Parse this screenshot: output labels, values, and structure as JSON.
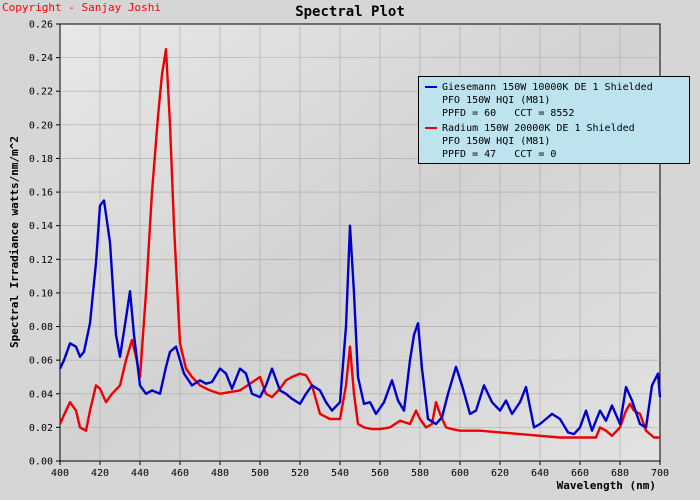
{
  "copyright": "Copyright - Sanjay Joshi",
  "chart_data": {
    "type": "line",
    "title": "Spectral Plot",
    "xlabel": "Wavelength (nm)",
    "ylabel": "Spectral Irradiance watts/nm/m^2",
    "xlim": [
      400,
      700
    ],
    "ylim": [
      0,
      0.26
    ],
    "xticks": [
      "400",
      "420",
      "440",
      "460",
      "480",
      "500",
      "520",
      "540",
      "560",
      "580",
      "600",
      "620",
      "640",
      "660",
      "680",
      "700"
    ],
    "yticks": [
      "0.00",
      "0.02",
      "0.04",
      "0.06",
      "0.08",
      "0.10",
      "0.12",
      "0.14",
      "0.16",
      "0.18",
      "0.20",
      "0.22",
      "0.24",
      "0.26"
    ],
    "legend_position": "top-right",
    "series": [
      {
        "name": "Giesemann 150W 10000K DE 1 Shielded",
        "ballast": "PFO 150W HQI (M81)",
        "ppfd_line": "PPFD = 60   CCT = 8552",
        "color": "#0000cc",
        "x": [
          400,
          402,
          405,
          408,
          410,
          412,
          415,
          418,
          420,
          422,
          425,
          428,
          430,
          433,
          435,
          437,
          440,
          443,
          446,
          450,
          453,
          455,
          458,
          462,
          466,
          470,
          473,
          476,
          480,
          483,
          486,
          490,
          493,
          496,
          500,
          503,
          506,
          510,
          513,
          516,
          520,
          523,
          526,
          530,
          533,
          536,
          540,
          543,
          545,
          547,
          549,
          552,
          555,
          558,
          562,
          566,
          569,
          572,
          575,
          577,
          579,
          581,
          584,
          588,
          591,
          594,
          598,
          601,
          605,
          608,
          612,
          616,
          620,
          623,
          626,
          630,
          633,
          637,
          640,
          643,
          646,
          650,
          654,
          657,
          660,
          663,
          666,
          670,
          673,
          676,
          680,
          683,
          686,
          690,
          693,
          696,
          699,
          700
        ],
        "y": [
          0.055,
          0.06,
          0.07,
          0.068,
          0.062,
          0.065,
          0.082,
          0.118,
          0.152,
          0.155,
          0.13,
          0.075,
          0.062,
          0.085,
          0.101,
          0.075,
          0.045,
          0.04,
          0.042,
          0.04,
          0.056,
          0.065,
          0.068,
          0.052,
          0.045,
          0.048,
          0.046,
          0.047,
          0.055,
          0.052,
          0.043,
          0.055,
          0.052,
          0.04,
          0.038,
          0.045,
          0.055,
          0.042,
          0.04,
          0.037,
          0.034,
          0.04,
          0.045,
          0.042,
          0.035,
          0.03,
          0.035,
          0.08,
          0.14,
          0.1,
          0.05,
          0.034,
          0.035,
          0.028,
          0.035,
          0.048,
          0.036,
          0.03,
          0.06,
          0.075,
          0.082,
          0.055,
          0.025,
          0.022,
          0.026,
          0.04,
          0.056,
          0.045,
          0.028,
          0.03,
          0.045,
          0.035,
          0.03,
          0.036,
          0.028,
          0.035,
          0.044,
          0.02,
          0.022,
          0.025,
          0.028,
          0.025,
          0.017,
          0.016,
          0.02,
          0.03,
          0.018,
          0.03,
          0.024,
          0.033,
          0.022,
          0.044,
          0.036,
          0.022,
          0.02,
          0.045,
          0.052,
          0.038
        ]
      },
      {
        "name": "Radium 150W 20000K DE 1 Shielded",
        "ballast": "PFO 150W HQI (M81)",
        "ppfd_line": "PPFD = 47   CCT = 0",
        "color": "#ee0000",
        "x": [
          400,
          403,
          405,
          408,
          410,
          413,
          415,
          418,
          420,
          423,
          426,
          430,
          433,
          436,
          438,
          440,
          443,
          446,
          449,
          451,
          453,
          455,
          457,
          460,
          463,
          466,
          470,
          475,
          480,
          485,
          490,
          495,
          500,
          503,
          506,
          510,
          513,
          516,
          520,
          523,
          526,
          530,
          535,
          540,
          543,
          545,
          547,
          549,
          552,
          556,
          560,
          565,
          570,
          575,
          578,
          580,
          583,
          586,
          588,
          590,
          593,
          596,
          600,
          610,
          620,
          630,
          640,
          650,
          660,
          665,
          668,
          670,
          673,
          676,
          680,
          683,
          685,
          687,
          690,
          693,
          697,
          700
        ],
        "y": [
          0.022,
          0.03,
          0.035,
          0.03,
          0.02,
          0.018,
          0.03,
          0.045,
          0.043,
          0.035,
          0.04,
          0.045,
          0.06,
          0.072,
          0.062,
          0.05,
          0.1,
          0.16,
          0.205,
          0.23,
          0.245,
          0.2,
          0.14,
          0.07,
          0.055,
          0.05,
          0.045,
          0.042,
          0.04,
          0.041,
          0.042,
          0.046,
          0.05,
          0.04,
          0.038,
          0.043,
          0.048,
          0.05,
          0.052,
          0.051,
          0.045,
          0.028,
          0.025,
          0.025,
          0.045,
          0.068,
          0.04,
          0.022,
          0.02,
          0.019,
          0.019,
          0.02,
          0.024,
          0.022,
          0.03,
          0.025,
          0.02,
          0.022,
          0.035,
          0.028,
          0.02,
          0.019,
          0.018,
          0.018,
          0.017,
          0.016,
          0.015,
          0.014,
          0.014,
          0.014,
          0.014,
          0.02,
          0.018,
          0.015,
          0.02,
          0.03,
          0.034,
          0.03,
          0.028,
          0.018,
          0.014,
          0.014
        ]
      }
    ]
  }
}
